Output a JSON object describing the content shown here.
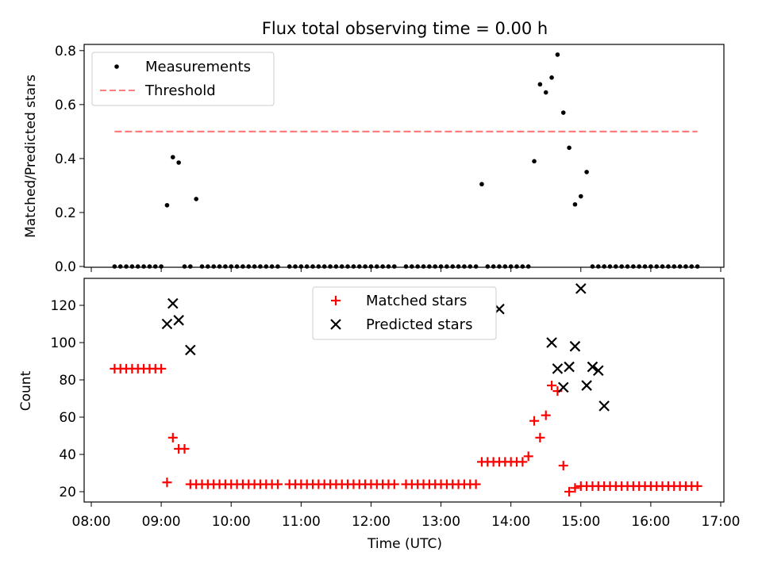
{
  "figure": {
    "title": "Flux total observing time = 0.00 h"
  },
  "colors": {
    "measurement": "#000000",
    "threshold": "#ff7f7f",
    "matched": "#ff0000",
    "predicted": "#000000"
  },
  "chart_data": [
    {
      "type": "scatter",
      "ylabel": "Matched/Predicted stars",
      "xlabel": "",
      "xlim": [
        "08:00",
        "17:00"
      ],
      "ylim": [
        0,
        0.82
      ],
      "yticks": [
        0.0,
        0.2,
        0.4,
        0.6,
        0.8
      ],
      "ytick_labels": [
        "0.0",
        "0.2",
        "0.4",
        "0.6",
        "0.8"
      ],
      "legend": {
        "placement": "upper-left",
        "entries": [
          "Measurements",
          "Threshold"
        ]
      },
      "series": [
        {
          "name": "Measurements",
          "marker": "dot",
          "x": [
            "08:20",
            "08:25",
            "08:30",
            "08:35",
            "08:40",
            "08:45",
            "08:50",
            "08:55",
            "09:00",
            "09:05",
            "09:10",
            "09:15",
            "09:20",
            "09:25",
            "09:30",
            "09:35",
            "09:40",
            "09:45",
            "09:50",
            "09:55",
            "10:00",
            "10:05",
            "10:10",
            "10:15",
            "10:20",
            "10:25",
            "10:30",
            "10:35",
            "10:40",
            "10:50",
            "10:55",
            "11:00",
            "11:05",
            "11:10",
            "11:15",
            "11:20",
            "11:25",
            "11:30",
            "11:35",
            "11:40",
            "11:45",
            "11:50",
            "11:55",
            "12:00",
            "12:05",
            "12:10",
            "12:15",
            "12:20",
            "12:30",
            "12:35",
            "12:40",
            "12:45",
            "12:50",
            "12:55",
            "13:00",
            "13:05",
            "13:10",
            "13:15",
            "13:20",
            "13:25",
            "13:30",
            "13:35",
            "13:40",
            "13:45",
            "13:50",
            "13:55",
            "14:00",
            "14:05",
            "14:10",
            "14:15",
            "14:20",
            "14:25",
            "14:30",
            "14:35",
            "14:40",
            "14:45",
            "14:50",
            "14:55",
            "15:00",
            "15:05",
            "15:10",
            "15:15",
            "15:20",
            "15:25",
            "15:30",
            "15:35",
            "15:40",
            "15:45",
            "15:50",
            "15:55",
            "16:00",
            "16:05",
            "16:10",
            "16:15",
            "16:20",
            "16:25",
            "16:30",
            "16:35",
            "16:40"
          ],
          "y": [
            0,
            0,
            0,
            0,
            0,
            0,
            0,
            0,
            0,
            0.227,
            0.405,
            0.385,
            0,
            0,
            0.25,
            0,
            0,
            0,
            0,
            0,
            0,
            0,
            0,
            0,
            0,
            0,
            0,
            0,
            0,
            0,
            0,
            0,
            0,
            0,
            0,
            0,
            0,
            0,
            0,
            0,
            0,
            0,
            0,
            0,
            0,
            0,
            0,
            0,
            0,
            0,
            0,
            0,
            0,
            0,
            0,
            0,
            0,
            0,
            0,
            0,
            0,
            0.305,
            0,
            0,
            0,
            0,
            0,
            0,
            0,
            0,
            0.39,
            0.675,
            0.645,
            0.7,
            0.785,
            0.57,
            0.44,
            0.23,
            0.26,
            0.35,
            0,
            0,
            0,
            0,
            0,
            0,
            0,
            0,
            0,
            0,
            0,
            0,
            0,
            0,
            0,
            0,
            0,
            0,
            0
          ]
        },
        {
          "name": "Threshold",
          "style": "dashed",
          "x": [
            "08:20",
            "16:40"
          ],
          "y": [
            0.5,
            0.5
          ]
        }
      ]
    },
    {
      "type": "scatter",
      "ylabel": "Count",
      "xlabel": "Time (UTC)",
      "xlim": [
        "08:00",
        "17:00"
      ],
      "ylim": [
        15,
        134
      ],
      "xticks": [
        "08:00",
        "09:00",
        "10:00",
        "11:00",
        "12:00",
        "13:00",
        "14:00",
        "15:00",
        "16:00",
        "17:00"
      ],
      "yticks": [
        20,
        40,
        60,
        80,
        100,
        120
      ],
      "ytick_labels": [
        "20",
        "40",
        "60",
        "80",
        "100",
        "120"
      ],
      "legend": {
        "placement": "upper-center",
        "entries": [
          "Matched stars",
          "Predicted stars"
        ]
      },
      "series": [
        {
          "name": "Matched stars",
          "marker": "plus",
          "x": [
            "08:20",
            "08:25",
            "08:30",
            "08:35",
            "08:40",
            "08:45",
            "08:50",
            "08:55",
            "09:00",
            "09:05",
            "09:10",
            "09:15",
            "09:20",
            "09:25",
            "09:30",
            "09:35",
            "09:40",
            "09:45",
            "09:50",
            "09:55",
            "10:00",
            "10:05",
            "10:10",
            "10:15",
            "10:20",
            "10:25",
            "10:30",
            "10:35",
            "10:40",
            "10:50",
            "10:55",
            "11:00",
            "11:05",
            "11:10",
            "11:15",
            "11:20",
            "11:25",
            "11:30",
            "11:35",
            "11:40",
            "11:45",
            "11:50",
            "11:55",
            "12:00",
            "12:05",
            "12:10",
            "12:15",
            "12:20",
            "12:30",
            "12:35",
            "12:40",
            "12:45",
            "12:50",
            "12:55",
            "13:00",
            "13:05",
            "13:10",
            "13:15",
            "13:20",
            "13:25",
            "13:30",
            "13:35",
            "13:40",
            "13:45",
            "13:50",
            "13:55",
            "14:00",
            "14:05",
            "14:10",
            "14:15",
            "14:20",
            "14:25",
            "14:30",
            "14:35",
            "14:40",
            "14:45",
            "14:50",
            "14:55",
            "15:00",
            "15:05",
            "15:10",
            "15:15",
            "15:20",
            "15:25",
            "15:30",
            "15:35",
            "15:40",
            "15:45",
            "15:50",
            "15:55",
            "16:00",
            "16:05",
            "16:10",
            "16:15",
            "16:20",
            "16:25",
            "16:30",
            "16:35",
            "16:40"
          ],
          "y": [
            86,
            86,
            86,
            86,
            86,
            86,
            86,
            86,
            86,
            25,
            49,
            43,
            43,
            24,
            24,
            24,
            24,
            24,
            24,
            24,
            24,
            24,
            24,
            24,
            24,
            24,
            24,
            24,
            24,
            24,
            24,
            24,
            24,
            24,
            24,
            24,
            24,
            24,
            24,
            24,
            24,
            24,
            24,
            24,
            24,
            24,
            24,
            24,
            24,
            24,
            24,
            24,
            24,
            24,
            24,
            24,
            24,
            24,
            24,
            24,
            24,
            36,
            36,
            36,
            36,
            36,
            36,
            36,
            36,
            39,
            58,
            49,
            61,
            77,
            74,
            34,
            20,
            22,
            23,
            23,
            23,
            23,
            23,
            23,
            23,
            23,
            23,
            23,
            23,
            23,
            23,
            23,
            23,
            23,
            23,
            23,
            23,
            23,
            23
          ]
        },
        {
          "name": "Predicted stars",
          "marker": "x",
          "x": [
            "09:05",
            "09:10",
            "09:15",
            "09:25",
            "13:50",
            "14:35",
            "14:40",
            "14:45",
            "14:50",
            "14:55",
            "15:00",
            "15:05",
            "15:10",
            "15:15",
            "15:20"
          ],
          "y": [
            110,
            121,
            112,
            96,
            118,
            100,
            86,
            76,
            87,
            98,
            129,
            77,
            87,
            85,
            66
          ]
        }
      ]
    }
  ]
}
